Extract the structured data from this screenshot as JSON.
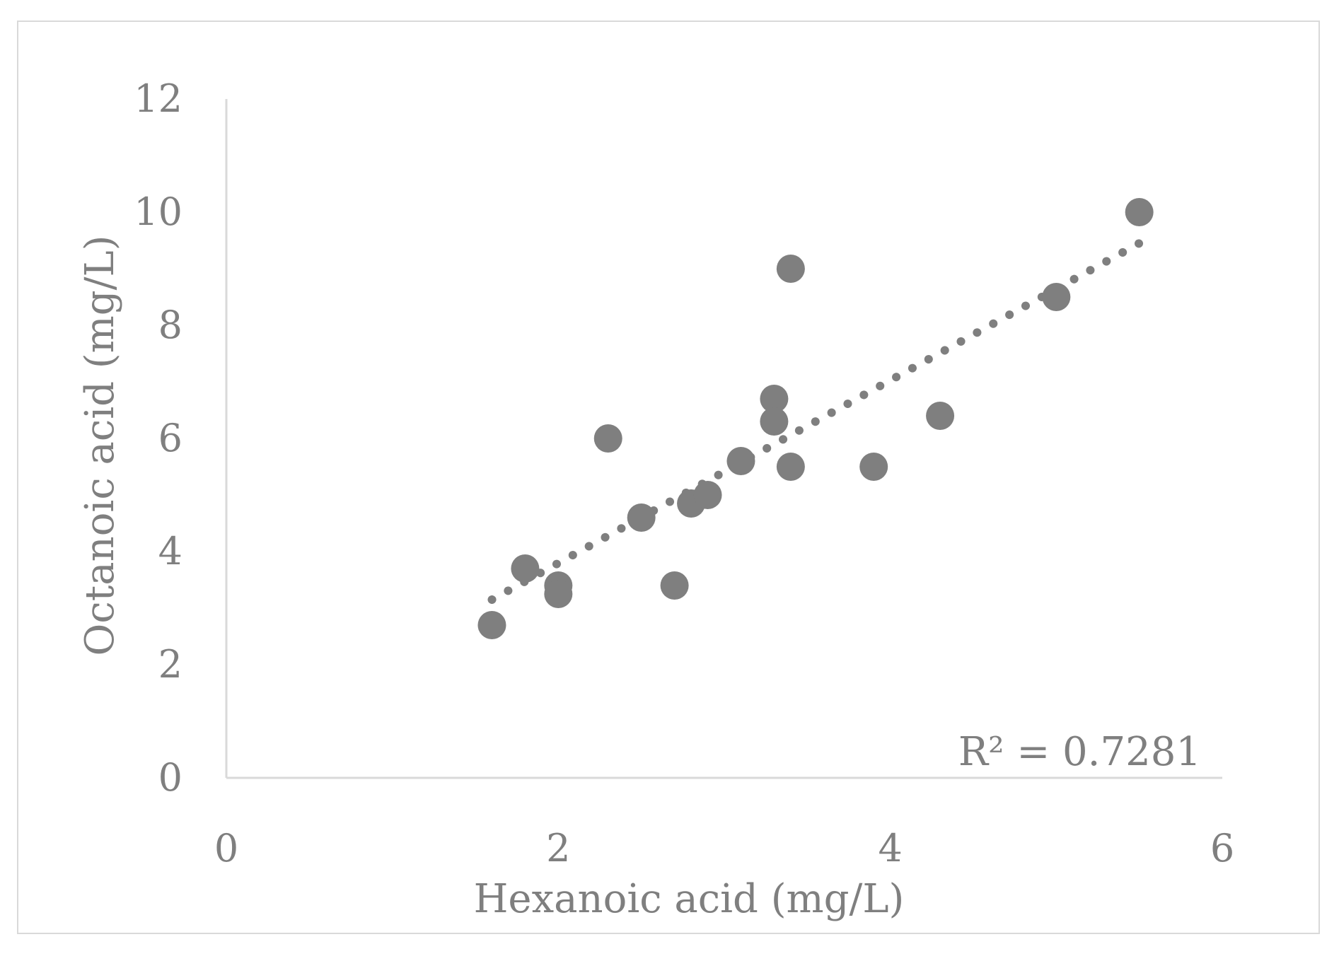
{
  "chart_data": {
    "type": "scatter",
    "xlabel": "Hexanoic acid (mg/L)",
    "ylabel": "Octanoic acid (mg/L)",
    "xlim": [
      0,
      6
    ],
    "ylim": [
      0,
      12
    ],
    "x_ticks": [
      "0",
      "2",
      "4",
      "6"
    ],
    "y_ticks": [
      "0",
      "2",
      "4",
      "6",
      "8",
      "10",
      "12"
    ],
    "grid": false,
    "legend": "none",
    "series": [
      {
        "x": [
          1.6,
          1.8,
          2.0,
          2.0,
          2.3,
          2.5,
          2.7,
          2.8,
          2.9,
          3.1,
          3.3,
          3.3,
          3.4,
          3.4,
          3.9,
          4.3,
          5.0,
          5.5
        ],
        "y": [
          2.7,
          3.7,
          3.4,
          3.25,
          6.0,
          4.6,
          3.4,
          4.85,
          5.0,
          5.6,
          6.7,
          6.3,
          9.0,
          5.5,
          5.5,
          6.4,
          8.5,
          10.0
        ],
        "color": "#7f7f7f"
      }
    ],
    "trendline": {
      "type": "linear",
      "style": "dotted",
      "x_range": [
        1.6,
        5.5
      ],
      "y_range": [
        3.15,
        9.45
      ],
      "annotation": "R² = 0.7281"
    }
  }
}
